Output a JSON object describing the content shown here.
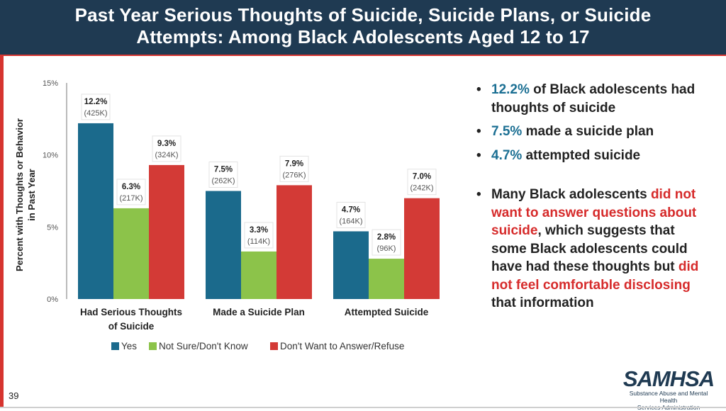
{
  "slide": {
    "title_line1": "Past Year Serious Thoughts of Suicide, Suicide Plans, or Suicide",
    "title_line2": "Attempts: Among Black Adolescents Aged 12 to 17",
    "page_number": "39"
  },
  "colors": {
    "header_bg": "#1f3a52",
    "accent_red": "#d6342f",
    "yes": "#1b6a8c",
    "not_sure": "#8cc34a",
    "refuse": "#d33a36"
  },
  "chart_data": {
    "type": "bar",
    "title": "",
    "ylabel_line1": "Percent with Thoughts or Behavior",
    "ylabel_line2": "in Past Year",
    "ylim": [
      0,
      15
    ],
    "yticks": [
      "0%",
      "5%",
      "10%",
      "15%"
    ],
    "ytick_values": [
      0,
      5,
      10,
      15
    ],
    "categories": [
      [
        "Had Serious Thoughts",
        "of Suicide"
      ],
      [
        "Made a Suicide Plan"
      ],
      [
        "Attempted Suicide"
      ]
    ],
    "series": [
      {
        "name": "Yes",
        "values": [
          12.2,
          7.5,
          4.7
        ],
        "labels": [
          "12.2%",
          "7.5%",
          "4.7%"
        ],
        "counts": [
          "(425K)",
          "(262K)",
          "(164K)"
        ]
      },
      {
        "name": "Not Sure/Don't Know",
        "values": [
          6.3,
          3.3,
          2.8
        ],
        "labels": [
          "6.3%",
          "3.3%",
          "2.8%"
        ],
        "counts": [
          "(217K)",
          "(114K)",
          "(96K)"
        ]
      },
      {
        "name": "Don't Want to Answer/Refuse",
        "values": [
          9.3,
          7.9,
          7.0
        ],
        "labels": [
          "9.3%",
          "7.9%",
          "7.0%"
        ],
        "counts": [
          "(324K)",
          "(276K)",
          "(242K)"
        ]
      }
    ],
    "legend": [
      "Yes",
      "Not Sure/Don't Know",
      "Don't Want to Answer/Refuse"
    ],
    "legend_position": "bottom"
  },
  "bullets": {
    "b1_value": "12.2%",
    "b1_text": " of Black adolescents had thoughts of suicide",
    "b2_value": "7.5%",
    "b2_text": " made a suicide plan",
    "b3_value": "4.7%",
    "b3_text": " attempted suicide",
    "b4_part1": "Many Black adolescents ",
    "b4_red1": "did not want to answer questions about suicide",
    "b4_part2": ", which suggests that some Black adolescents could have had these thoughts but ",
    "b4_red2": "did not feel comfortable disclosing",
    "b4_part3": " that information",
    "dot": "•"
  },
  "logo": {
    "name": "SAMHSA",
    "subtitle_line1": "Substance Abuse and Mental Health",
    "subtitle_line2": "Services Administration"
  }
}
